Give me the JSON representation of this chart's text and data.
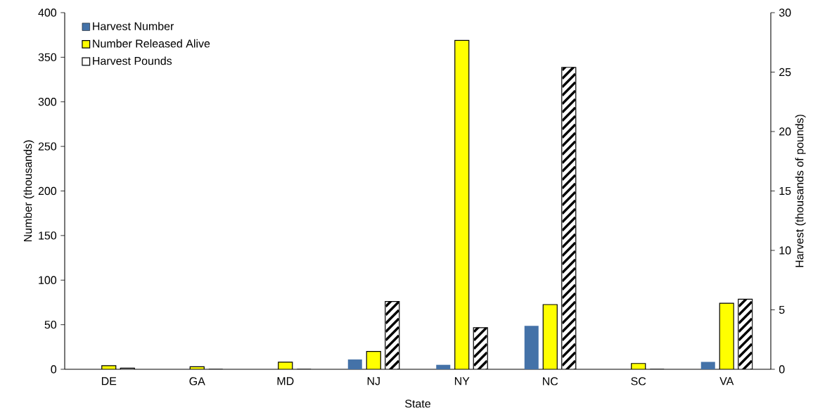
{
  "chart_data": {
    "type": "bar",
    "xlabel": "State",
    "ylabel": "Number (thousands)",
    "y2label": "Harvest (thousands of pounds)",
    "categories": [
      "DE",
      "GA",
      "MD",
      "NJ",
      "NY",
      "NC",
      "SC",
      "VA"
    ],
    "series": [
      {
        "name": "Harvest Number",
        "color": "#4472a8",
        "values": [
          0,
          0,
          0,
          11,
          5,
          48.7,
          0,
          8.3
        ]
      },
      {
        "name": "Number Released Alive",
        "color": "#ffff00",
        "values": [
          4,
          2.8,
          8,
          20,
          369,
          72.6,
          6.5,
          74
        ]
      },
      {
        "name": "Harvest Pounds",
        "color": "#ffffff",
        "axis": "y2",
        "values": [
          0.1,
          0,
          0,
          5.7,
          3.5,
          25.4,
          0,
          5.9
        ]
      }
    ],
    "ylim": [
      0,
      400
    ],
    "yticks": [
      0,
      50,
      100,
      150,
      200,
      250,
      300,
      350,
      400
    ],
    "y2lim": [
      0,
      30
    ],
    "y2ticks": [
      0,
      5,
      10,
      15,
      20,
      25,
      30
    ],
    "grid": false,
    "legend": "top left"
  }
}
